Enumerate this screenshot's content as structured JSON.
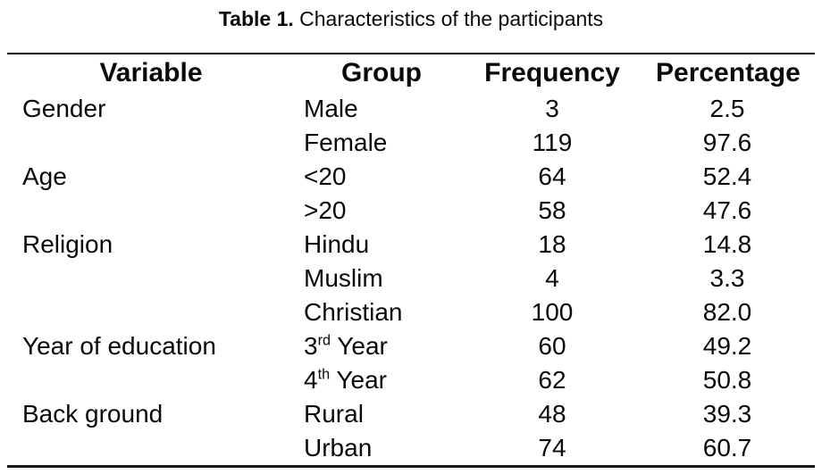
{
  "title": {
    "bold": "Table 1.",
    "rest": " Characteristics of the participants"
  },
  "table": {
    "headers": [
      "Variable",
      "Group",
      "Frequency",
      "Percentage"
    ],
    "rows": [
      {
        "variable": "Gender",
        "group_base": "Male",
        "group_sup": "",
        "group_rest": "",
        "frequency": "3",
        "percentage": "2.5"
      },
      {
        "variable": "",
        "group_base": "Female",
        "group_sup": "",
        "group_rest": "",
        "frequency": "119",
        "percentage": "97.6"
      },
      {
        "variable": "Age",
        "group_base": "<20",
        "group_sup": "",
        "group_rest": "",
        "frequency": "64",
        "percentage": "52.4"
      },
      {
        "variable": "",
        "group_base": ">20",
        "group_sup": "",
        "group_rest": "",
        "frequency": "58",
        "percentage": "47.6"
      },
      {
        "variable": "Religion",
        "group_base": "Hindu",
        "group_sup": "",
        "group_rest": "",
        "frequency": "18",
        "percentage": "14.8"
      },
      {
        "variable": "",
        "group_base": "Muslim",
        "group_sup": "",
        "group_rest": "",
        "frequency": "4",
        "percentage": "3.3"
      },
      {
        "variable": "",
        "group_base": "Christian",
        "group_sup": "",
        "group_rest": "",
        "frequency": "100",
        "percentage": "82.0"
      },
      {
        "variable": "Year of education",
        "group_base": "3",
        "group_sup": "rd",
        "group_rest": " Year",
        "frequency": "60",
        "percentage": "49.2"
      },
      {
        "variable": "",
        "group_base": "4",
        "group_sup": "th",
        "group_rest": " Year",
        "frequency": "62",
        "percentage": "50.8"
      },
      {
        "variable": "Back ground",
        "group_base": "Rural",
        "group_sup": "",
        "group_rest": "",
        "frequency": "48",
        "percentage": "39.3"
      },
      {
        "variable": "",
        "group_base": "Urban",
        "group_sup": "",
        "group_rest": "",
        "frequency": "74",
        "percentage": "60.7"
      }
    ]
  }
}
